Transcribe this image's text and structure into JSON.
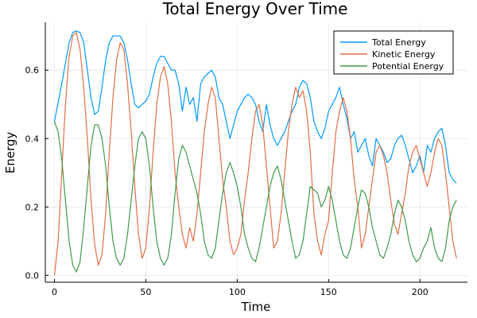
{
  "chart_data": {
    "type": "line",
    "title": "Total Energy Over Time",
    "xlabel": "Time",
    "ylabel": "Energy",
    "xlim": [
      -5,
      226
    ],
    "ylim": [
      -0.02,
      0.74
    ],
    "xticks": [
      0,
      50,
      100,
      150,
      200
    ],
    "yticks": [
      0.0,
      0.2,
      0.4,
      0.6
    ],
    "xtick_labels": [
      "0",
      "50",
      "100",
      "150",
      "200"
    ],
    "ytick_labels": [
      "0.0",
      "0.2",
      "0.4",
      "0.6"
    ],
    "grid": true,
    "legend_position": "top-right",
    "series": [
      {
        "name": "Total Energy",
        "color": "#009AFA",
        "x": [
          0,
          4,
          8,
          10,
          12,
          14,
          16,
          18,
          20,
          22,
          24,
          26,
          28,
          30,
          32,
          34,
          36,
          38,
          40,
          42,
          44,
          46,
          48,
          50,
          52,
          54,
          56,
          58,
          60,
          62,
          64,
          66,
          68,
          70,
          72,
          74,
          76,
          78,
          80,
          82,
          84,
          86,
          88,
          90,
          92,
          94,
          96,
          98,
          100,
          102,
          104,
          106,
          108,
          110,
          112,
          114,
          116,
          118,
          120,
          122,
          124,
          126,
          128,
          130,
          132,
          134,
          136,
          138,
          140,
          142,
          144,
          146,
          148,
          150,
          152,
          154,
          156,
          158,
          160,
          162,
          164,
          166,
          168,
          170,
          172,
          174,
          176,
          178,
          180,
          182,
          184,
          186,
          188,
          190,
          192,
          194,
          196,
          198,
          200,
          202,
          204,
          206,
          208,
          210,
          212,
          214,
          216,
          218,
          220
        ],
        "y": [
          0.45,
          0.56,
          0.68,
          0.71,
          0.715,
          0.71,
          0.68,
          0.6,
          0.52,
          0.47,
          0.48,
          0.55,
          0.63,
          0.68,
          0.7,
          0.7,
          0.7,
          0.68,
          0.63,
          0.56,
          0.5,
          0.49,
          0.5,
          0.51,
          0.53,
          0.58,
          0.62,
          0.64,
          0.64,
          0.62,
          0.6,
          0.6,
          0.56,
          0.48,
          0.55,
          0.5,
          0.52,
          0.45,
          0.56,
          0.58,
          0.59,
          0.6,
          0.58,
          0.52,
          0.5,
          0.45,
          0.4,
          0.44,
          0.48,
          0.5,
          0.52,
          0.53,
          0.52,
          0.5,
          0.45,
          0.42,
          0.5,
          0.44,
          0.4,
          0.38,
          0.4,
          0.42,
          0.45,
          0.48,
          0.5,
          0.55,
          0.57,
          0.56,
          0.52,
          0.45,
          0.42,
          0.4,
          0.43,
          0.48,
          0.5,
          0.52,
          0.55,
          0.5,
          0.46,
          0.4,
          0.42,
          0.36,
          0.38,
          0.4,
          0.35,
          0.32,
          0.4,
          0.38,
          0.36,
          0.33,
          0.34,
          0.38,
          0.4,
          0.41,
          0.38,
          0.34,
          0.3,
          0.32,
          0.35,
          0.3,
          0.38,
          0.36,
          0.4,
          0.42,
          0.43,
          0.38,
          0.3,
          0.28,
          0.27
        ]
      },
      {
        "name": "Kinetic Energy",
        "color": "#E26F46",
        "x": [
          0,
          2,
          4,
          6,
          8,
          10,
          12,
          14,
          16,
          18,
          20,
          22,
          24,
          26,
          28,
          30,
          32,
          34,
          36,
          38,
          40,
          42,
          44,
          46,
          48,
          50,
          52,
          54,
          56,
          58,
          60,
          62,
          64,
          66,
          68,
          70,
          72,
          74,
          76,
          78,
          80,
          82,
          84,
          86,
          88,
          90,
          92,
          94,
          96,
          98,
          100,
          102,
          104,
          106,
          108,
          110,
          112,
          114,
          116,
          118,
          120,
          122,
          124,
          126,
          128,
          130,
          132,
          134,
          136,
          138,
          140,
          142,
          144,
          146,
          148,
          150,
          152,
          154,
          156,
          158,
          160,
          162,
          164,
          166,
          168,
          170,
          172,
          174,
          176,
          178,
          180,
          182,
          184,
          186,
          188,
          190,
          192,
          194,
          196,
          198,
          200,
          202,
          204,
          206,
          208,
          210,
          212,
          214,
          216,
          218,
          220
        ],
        "y": [
          0.0,
          0.1,
          0.3,
          0.5,
          0.64,
          0.7,
          0.71,
          0.66,
          0.55,
          0.4,
          0.22,
          0.09,
          0.03,
          0.06,
          0.18,
          0.36,
          0.52,
          0.63,
          0.68,
          0.66,
          0.56,
          0.42,
          0.26,
          0.12,
          0.05,
          0.08,
          0.2,
          0.36,
          0.5,
          0.58,
          0.61,
          0.56,
          0.45,
          0.3,
          0.2,
          0.12,
          0.08,
          0.14,
          0.1,
          0.18,
          0.3,
          0.42,
          0.5,
          0.55,
          0.52,
          0.4,
          0.28,
          0.2,
          0.1,
          0.06,
          0.08,
          0.12,
          0.22,
          0.3,
          0.4,
          0.48,
          0.5,
          0.44,
          0.32,
          0.2,
          0.08,
          0.1,
          0.18,
          0.3,
          0.42,
          0.5,
          0.55,
          0.52,
          0.54,
          0.48,
          0.36,
          0.18,
          0.1,
          0.06,
          0.12,
          0.16,
          0.3,
          0.42,
          0.48,
          0.52,
          0.48,
          0.4,
          0.28,
          0.2,
          0.08,
          0.12,
          0.2,
          0.28,
          0.36,
          0.38,
          0.35,
          0.3,
          0.22,
          0.15,
          0.12,
          0.18,
          0.24,
          0.32,
          0.36,
          0.38,
          0.34,
          0.3,
          0.26,
          0.3,
          0.36,
          0.4,
          0.38,
          0.3,
          0.2,
          0.1,
          0.05
        ]
      },
      {
        "name": "Potential Energy",
        "color": "#3E9B4A",
        "x": [
          0,
          2,
          4,
          6,
          8,
          10,
          12,
          14,
          16,
          18,
          20,
          22,
          24,
          26,
          28,
          30,
          32,
          34,
          36,
          38,
          40,
          42,
          44,
          46,
          48,
          50,
          52,
          54,
          56,
          58,
          60,
          62,
          64,
          66,
          68,
          70,
          72,
          74,
          76,
          78,
          80,
          82,
          84,
          86,
          88,
          90,
          92,
          94,
          96,
          98,
          100,
          102,
          104,
          106,
          108,
          110,
          112,
          114,
          116,
          118,
          120,
          122,
          124,
          126,
          128,
          130,
          132,
          134,
          136,
          138,
          140,
          142,
          144,
          146,
          148,
          150,
          152,
          154,
          156,
          158,
          160,
          162,
          164,
          166,
          168,
          170,
          172,
          174,
          176,
          178,
          180,
          182,
          184,
          186,
          188,
          190,
          192,
          194,
          196,
          198,
          200,
          202,
          204,
          206,
          208,
          210,
          212,
          214,
          216,
          218,
          220
        ],
        "y": [
          0.45,
          0.42,
          0.34,
          0.22,
          0.1,
          0.03,
          0.01,
          0.04,
          0.14,
          0.26,
          0.38,
          0.44,
          0.44,
          0.4,
          0.32,
          0.2,
          0.1,
          0.05,
          0.03,
          0.05,
          0.12,
          0.22,
          0.32,
          0.4,
          0.42,
          0.4,
          0.32,
          0.2,
          0.1,
          0.05,
          0.03,
          0.05,
          0.12,
          0.24,
          0.34,
          0.38,
          0.36,
          0.32,
          0.28,
          0.24,
          0.18,
          0.1,
          0.06,
          0.05,
          0.08,
          0.16,
          0.24,
          0.3,
          0.33,
          0.3,
          0.26,
          0.2,
          0.12,
          0.08,
          0.05,
          0.04,
          0.08,
          0.14,
          0.2,
          0.26,
          0.3,
          0.32,
          0.28,
          0.22,
          0.16,
          0.1,
          0.05,
          0.06,
          0.1,
          0.18,
          0.26,
          0.25,
          0.24,
          0.2,
          0.22,
          0.26,
          0.22,
          0.16,
          0.1,
          0.06,
          0.05,
          0.08,
          0.14,
          0.2,
          0.25,
          0.24,
          0.2,
          0.14,
          0.1,
          0.06,
          0.05,
          0.08,
          0.12,
          0.18,
          0.22,
          0.2,
          0.16,
          0.1,
          0.06,
          0.04,
          0.05,
          0.08,
          0.1,
          0.14,
          0.08,
          0.05,
          0.04,
          0.08,
          0.16,
          0.2,
          0.22
        ]
      }
    ]
  }
}
